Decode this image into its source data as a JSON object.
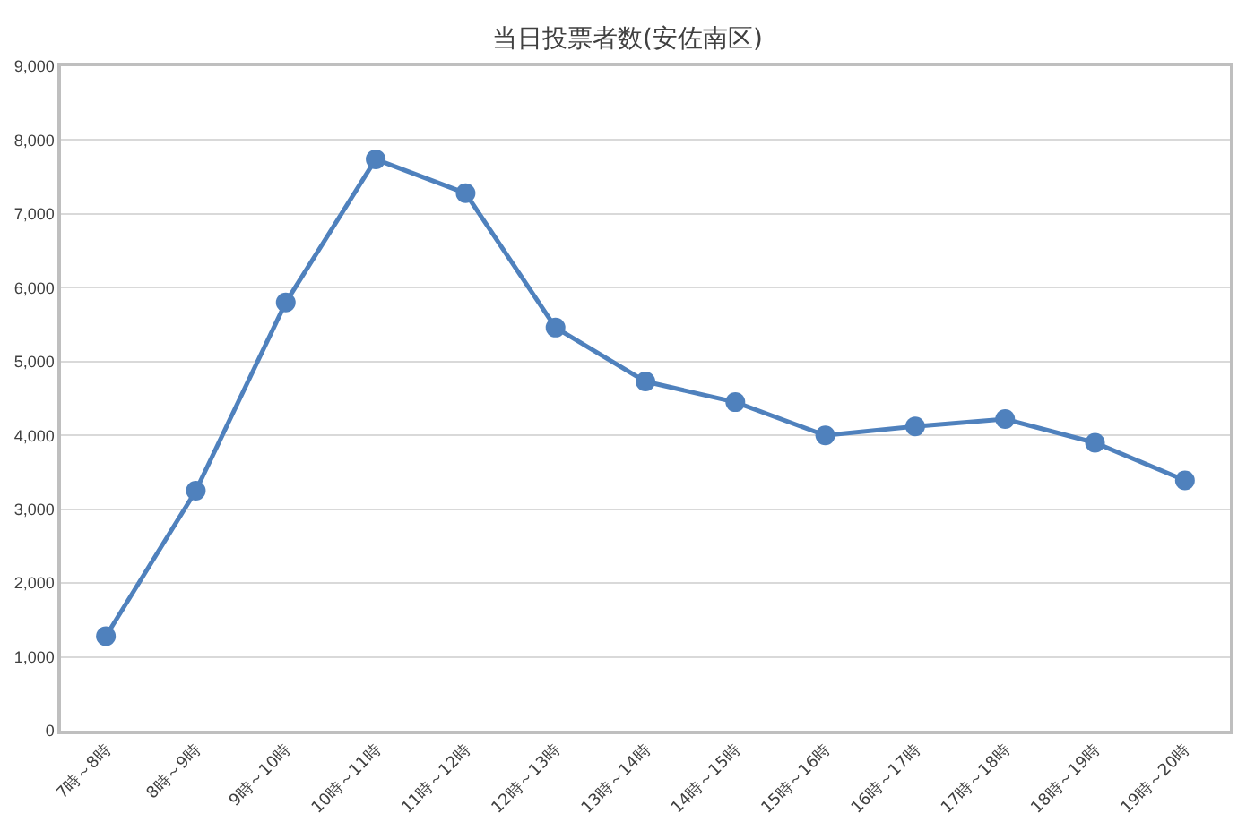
{
  "chart_data": {
    "type": "line",
    "title": "当日投票者数(安佐南区)",
    "categories": [
      "7時～8時",
      "8時～9時",
      "9時～10時",
      "10時～11時",
      "11時～12時",
      "12時～13時",
      "13時～14時",
      "14時～15時",
      "15時～16時",
      "16時～17時",
      "17時～18時",
      "18時～19時",
      "19時～20時"
    ],
    "series": [
      {
        "color": "#4f81bd",
        "values": [
          1280,
          3250,
          5800,
          7740,
          7280,
          5460,
          4730,
          4450,
          4000,
          4120,
          4220,
          3900,
          3390
        ]
      }
    ],
    "ylim": [
      0,
      9000
    ],
    "yticks": [
      {
        "value": 0,
        "label": "0"
      },
      {
        "value": 1000,
        "label": "1,000"
      },
      {
        "value": 2000,
        "label": "2,000"
      },
      {
        "value": 3000,
        "label": "3,000"
      },
      {
        "value": 4000,
        "label": "4,000"
      },
      {
        "value": 5000,
        "label": "5,000"
      },
      {
        "value": 6000,
        "label": "6,000"
      },
      {
        "value": 7000,
        "label": "7,000"
      },
      {
        "value": 8000,
        "label": "8,000"
      },
      {
        "value": 9000,
        "label": "9,000"
      }
    ],
    "grid": "y",
    "marker": "circle",
    "line_style": "solid"
  }
}
